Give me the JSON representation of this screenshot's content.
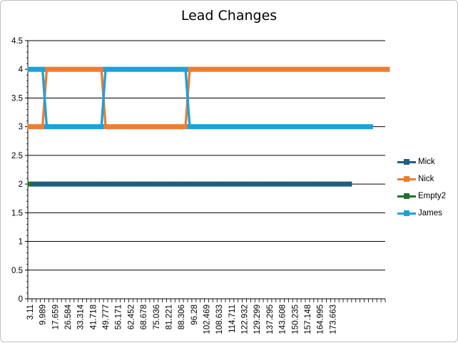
{
  "chart_data": {
    "type": "line",
    "title": "Lead Changes",
    "xlabel": "",
    "ylabel": "",
    "ylim": [
      0,
      4.5
    ],
    "yticks": [
      "0",
      "0.5",
      "1",
      "1.5",
      "2",
      "2.5",
      "3",
      "3.5",
      "4",
      "4.5"
    ],
    "x_tick_labels": [
      "3.11",
      "9.989",
      "17.659",
      "26.584",
      "33.314",
      "41.718",
      "49.777",
      "56.171",
      "62.452",
      "68.678",
      "75.036",
      "81.221",
      "88.306",
      "96.28",
      "102.469",
      "108.633",
      "114.711",
      "122.932",
      "129.299",
      "137.295",
      "143.608",
      "150.235",
      "157.148",
      "164.995",
      "173.663"
    ],
    "grid": "horizontal major gridlines",
    "legend_position": "right",
    "num_points": 85,
    "series": [
      {
        "name": "Mick",
        "color": "#1f5f7f",
        "runs": [
          [
            1,
            76,
            2
          ]
        ]
      },
      {
        "name": "Nick",
        "color": "#ee7d31",
        "runs": [
          [
            0,
            3,
            3
          ],
          [
            4,
            17,
            4
          ],
          [
            18,
            37,
            3
          ],
          [
            38,
            85,
            4
          ]
        ]
      },
      {
        "name": "Empty2",
        "color": "#21702e",
        "runs": [
          [
            0,
            0,
            2
          ]
        ]
      },
      {
        "name": "James",
        "color": "#1ea1db",
        "runs": [
          [
            0,
            3,
            4
          ],
          [
            4,
            17,
            3
          ],
          [
            18,
            37,
            4
          ],
          [
            38,
            81,
            3
          ]
        ]
      }
    ]
  }
}
